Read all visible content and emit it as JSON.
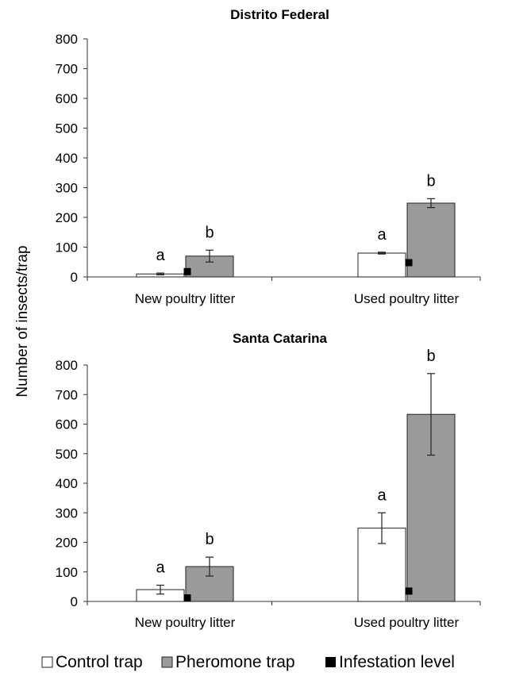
{
  "figure": {
    "ylabel": "Number of insects/trap",
    "legend": [
      {
        "name": "Control trap",
        "color": "#ffffff"
      },
      {
        "name": "Pheromone trap",
        "color": "#9a9a9a"
      },
      {
        "name": "Infestation level",
        "color": "#000000"
      }
    ]
  },
  "chart_data": [
    {
      "type": "bar",
      "title": "Distrito Federal",
      "categories": [
        "New poultry litter",
        "Used poultry litter"
      ],
      "ylim": [
        0,
        800
      ],
      "yticks": [
        "0",
        "100",
        "200",
        "300",
        "400",
        "500",
        "600",
        "700",
        "800"
      ],
      "series": [
        {
          "name": "Control trap",
          "values": [
            10,
            80
          ],
          "errors": [
            3,
            3
          ],
          "letters": [
            "a",
            "a"
          ]
        },
        {
          "name": "Pheromone trap",
          "values": [
            70,
            248
          ],
          "errors": [
            20,
            15
          ],
          "letters": [
            "b",
            "b"
          ]
        },
        {
          "name": "Infestation level",
          "values": [
            18,
            48
          ]
        }
      ],
      "grid": false,
      "legend_position": "bottom"
    },
    {
      "type": "bar",
      "title": "Santa Catarina",
      "categories": [
        "New poultry litter",
        "Used poultry litter"
      ],
      "ylim": [
        0,
        800
      ],
      "yticks": [
        "0",
        "100",
        "200",
        "300",
        "400",
        "500",
        "600",
        "700",
        "800"
      ],
      "series": [
        {
          "name": "Control trap",
          "values": [
            40,
            248
          ],
          "errors": [
            15,
            52
          ],
          "letters": [
            "a",
            "a"
          ]
        },
        {
          "name": "Pheromone trap",
          "values": [
            118,
            633
          ],
          "errors": [
            32,
            138
          ],
          "letters": [
            "b",
            "b"
          ]
        },
        {
          "name": "Infestation level",
          "values": [
            12,
            35
          ]
        }
      ],
      "grid": false,
      "legend_position": "bottom"
    }
  ]
}
